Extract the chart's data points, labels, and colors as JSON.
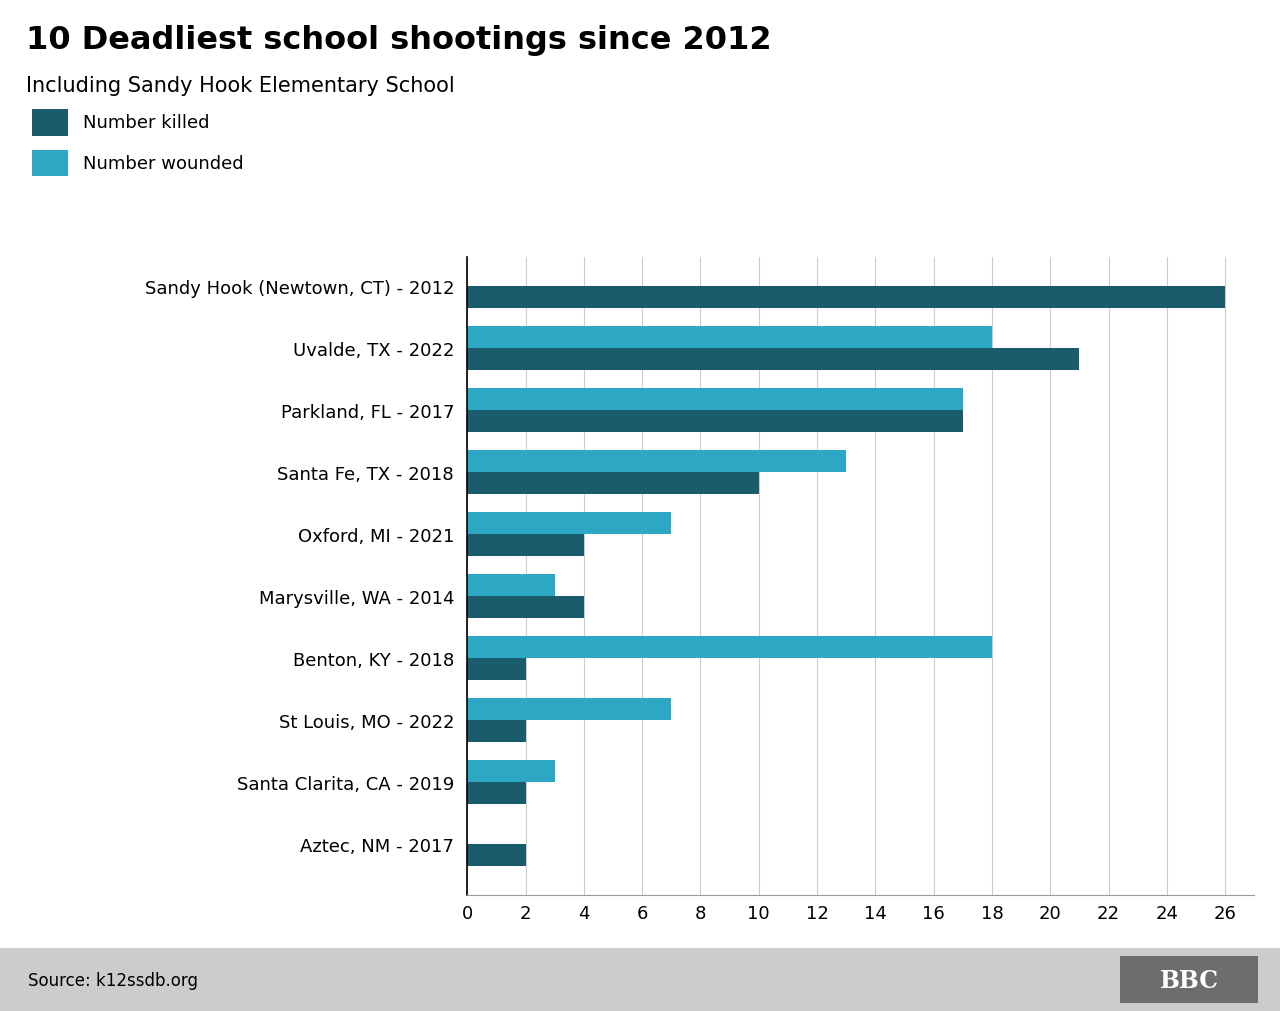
{
  "title": "10 Deadliest school shootings since 2012",
  "subtitle": "Including Sandy Hook Elementary School",
  "legend_killed": "Number killed",
  "legend_wounded": "Number wounded",
  "source": "Source: k12ssdb.org",
  "bbc_logo": "BBC",
  "categories": [
    "Sandy Hook (Newtown, CT) - 2012",
    "Uvalde, TX - 2022",
    "Parkland, FL - 2017",
    "Santa Fe, TX - 2018",
    "Oxford, MI - 2021",
    "Marysville, WA - 2014",
    "Benton, KY - 2018",
    "St Louis, MO - 2022",
    "Santa Clarita, CA - 2019",
    "Aztec, NM - 2017"
  ],
  "killed": [
    26,
    21,
    17,
    10,
    4,
    4,
    2,
    2,
    2,
    2
  ],
  "wounded": [
    0,
    18,
    17,
    13,
    7,
    3,
    18,
    7,
    3,
    0
  ],
  "color_killed": "#1a5c6b",
  "color_wounded": "#2da8c4",
  "background_color": "#ffffff",
  "xlim": [
    0,
    27
  ],
  "xticks": [
    0,
    2,
    4,
    6,
    8,
    10,
    12,
    14,
    16,
    18,
    20,
    22,
    24,
    26
  ],
  "title_fontsize": 23,
  "subtitle_fontsize": 15,
  "label_fontsize": 13,
  "tick_fontsize": 13,
  "bar_height": 0.35,
  "footer_color": "#cccccc",
  "footer_text_color": "#000000",
  "bbc_bg": "#6d6d6d"
}
